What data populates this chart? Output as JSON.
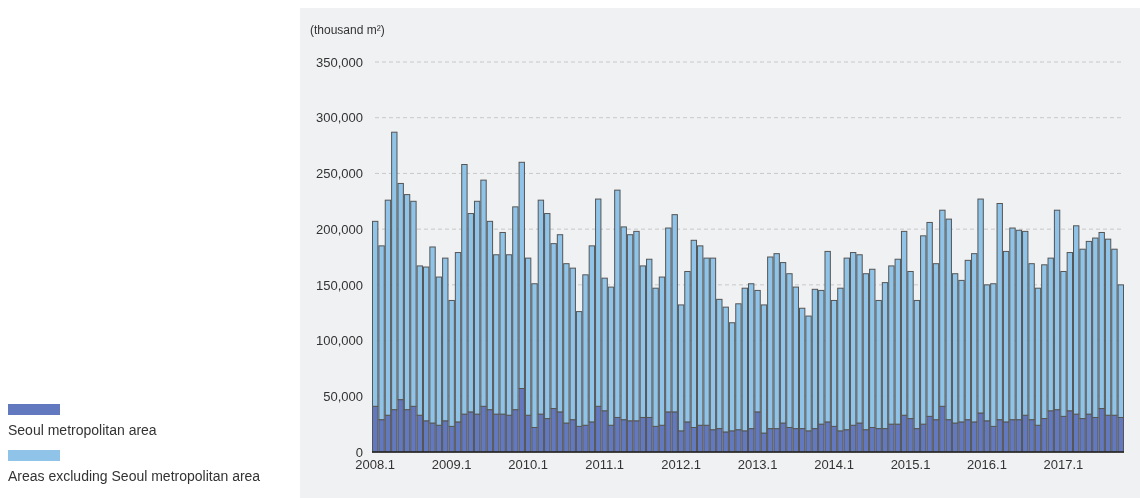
{
  "chart_data": {
    "type": "bar",
    "stacked": true,
    "ylabel": "(thousand m²)",
    "legend": "bottom left",
    "grid": "y",
    "categories": [
      "2008.1",
      null,
      null,
      null,
      null,
      null,
      null,
      null,
      null,
      null,
      null,
      null,
      "2009.1",
      null,
      null,
      null,
      null,
      null,
      null,
      null,
      null,
      null,
      null,
      null,
      "2010.1",
      null,
      null,
      null,
      null,
      null,
      null,
      null,
      null,
      null,
      null,
      null,
      "2011.1",
      null,
      null,
      null,
      null,
      null,
      null,
      null,
      null,
      null,
      null,
      null,
      "2012.1",
      null,
      null,
      null,
      null,
      null,
      null,
      null,
      null,
      null,
      null,
      null,
      "2013.1",
      null,
      null,
      null,
      null,
      null,
      null,
      null,
      null,
      null,
      null,
      null,
      "2014.1",
      null,
      null,
      null,
      null,
      null,
      null,
      null,
      null,
      null,
      null,
      null,
      "2015.1",
      null,
      null,
      null,
      null,
      null,
      null,
      null,
      null,
      null,
      null,
      null,
      "2016.1",
      null,
      null,
      null,
      null,
      null,
      null,
      null,
      null,
      null,
      null,
      null,
      "2017.1",
      null,
      null,
      null,
      null,
      null,
      null,
      null,
      null,
      null
    ],
    "ylim": [
      0,
      350000
    ],
    "yticks": [
      0,
      {
        "value": 50000,
        "label": "50,000"
      },
      {
        "value": 100000,
        "label": "100,000"
      },
      {
        "value": 150000,
        "label": "150,000"
      },
      {
        "value": 200000,
        "label": "200,000"
      },
      {
        "value": 250000,
        "label": "250,000"
      },
      {
        "value": 300000,
        "label": "300,000"
      },
      {
        "value": 350000,
        "label": "350,000"
      }
    ],
    "series": [
      {
        "name": "Seoul metropolitan area",
        "color": "#6279c0",
        "values": [
          41000,
          29000,
          33000,
          38000,
          47000,
          38000,
          41000,
          33000,
          28000,
          26000,
          24000,
          28000,
          23000,
          27000,
          34000,
          36000,
          34000,
          41000,
          38000,
          34000,
          34000,
          33000,
          38000,
          57000,
          33000,
          22000,
          34000,
          30000,
          39000,
          36000,
          26000,
          29000,
          23000,
          24000,
          27000,
          41000,
          37000,
          24000,
          31000,
          29000,
          28000,
          28000,
          31000,
          31000,
          23000,
          24000,
          36000,
          36000,
          19000,
          27000,
          22000,
          24000,
          24000,
          20000,
          21000,
          18000,
          19000,
          20000,
          19000,
          21000,
          36000,
          17000,
          21000,
          21000,
          26000,
          22000,
          21000,
          21000,
          19000,
          21000,
          25000,
          27000,
          23000,
          19000,
          20000,
          24000,
          26000,
          20000,
          22000,
          21000,
          21000,
          25000,
          25000,
          33000,
          30000,
          21000,
          25000,
          32000,
          29000,
          41000,
          29000,
          26000,
          27000,
          29000,
          27000,
          35000,
          28000,
          23000,
          29000,
          27000,
          29000,
          29000,
          33000,
          29000,
          24000,
          30000,
          37000,
          38000,
          32000,
          37000,
          34000,
          30000,
          34000,
          31000,
          39000,
          33000,
          33000,
          31000
        ]
      },
      {
        "name": "Areas excluding Seoul metropolitan area",
        "color": "#8fc4e8",
        "values": [
          166000,
          156000,
          193000,
          249000,
          194000,
          193000,
          184000,
          134000,
          138000,
          158000,
          133000,
          146000,
          113000,
          152000,
          224000,
          178000,
          191000,
          203000,
          169000,
          143000,
          163000,
          144000,
          182000,
          203000,
          141000,
          129000,
          192000,
          184000,
          148000,
          159000,
          143000,
          136000,
          103000,
          135000,
          158000,
          186000,
          119000,
          124000,
          204000,
          173000,
          167000,
          170000,
          136000,
          142000,
          124000,
          133000,
          165000,
          177000,
          113000,
          135000,
          168000,
          161000,
          150000,
          154000,
          116000,
          112000,
          97000,
          113000,
          128000,
          130000,
          109000,
          115000,
          154000,
          157000,
          144000,
          138000,
          127000,
          108000,
          103000,
          125000,
          120000,
          153000,
          113000,
          128000,
          154000,
          155000,
          151000,
          140000,
          142000,
          115000,
          131000,
          142000,
          148000,
          165000,
          132000,
          115000,
          169000,
          174000,
          140000,
          176000,
          180000,
          134000,
          127000,
          143000,
          151000,
          192000,
          122000,
          128000,
          194000,
          153000,
          172000,
          170000,
          165000,
          140000,
          123000,
          138000,
          137000,
          179000,
          130000,
          142000,
          169000,
          152000,
          155000,
          161000,
          158000,
          158000,
          149000,
          119000
        ]
      }
    ]
  }
}
